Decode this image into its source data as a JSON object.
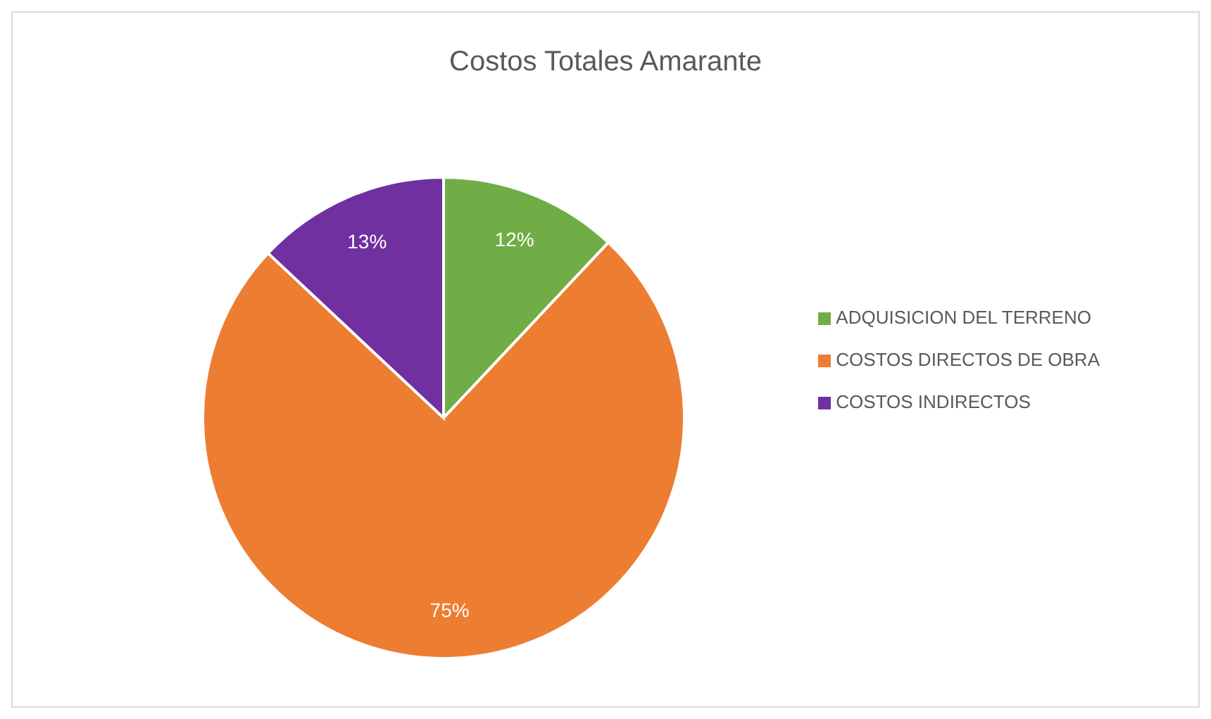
{
  "chart_data": {
    "type": "pie",
    "title": "Costos Totales Amarante",
    "categories": [
      "ADQUISICION DEL TERRENO",
      "COSTOS DIRECTOS DE OBRA",
      "COSTOS INDIRECTOS"
    ],
    "values": [
      12,
      75,
      13
    ],
    "colors": [
      "#70ad47",
      "#ed7d31",
      "#7030a0"
    ],
    "value_labels": [
      "12%",
      "75%",
      "13%"
    ],
    "legend": "right"
  }
}
